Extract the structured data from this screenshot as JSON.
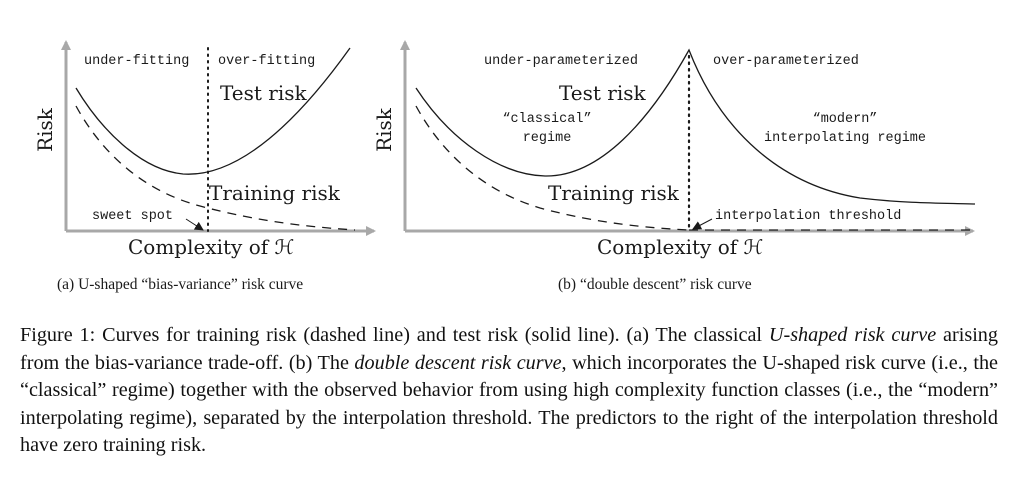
{
  "panel_a": {
    "ylabel": "Risk",
    "xlabel": "Complexity of ℋ",
    "left_region": "under-fitting",
    "right_region": "over-fitting",
    "test_label": "Test risk",
    "train_label": "Training risk",
    "sweet_spot": "sweet spot",
    "subcaption": "(a) U-shaped “bias-variance” risk curve"
  },
  "panel_b": {
    "ylabel": "Risk",
    "xlabel": "Complexity of ℋ",
    "left_region": "under-parameterized",
    "right_region": "over-parameterized",
    "test_label": "Test risk",
    "train_label": "Training risk",
    "classical_1": "“classical”",
    "classical_2": "regime",
    "modern_1": "“modern”",
    "modern_2": "interpolating regime",
    "threshold": "interpolation threshold",
    "subcaption": "(b) “double descent” risk curve"
  },
  "caption": {
    "t1": "Figure 1: Curves for training risk (dashed line) and test risk (solid line). (a) The classical ",
    "e1": "U-shaped risk curve",
    "t2": " arising from the bias-variance trade-off. (b) The ",
    "e2": "double descent risk curve",
    "t3": ", which incorporates the U-shaped risk curve (i.e., the “classical” regime) together with the observed behavior from using high complexity function classes (i.e., the “modern” interpolating regime), separated by the interpolation threshold.  The predictors to the right of the interpolation threshold have zero training risk."
  }
}
